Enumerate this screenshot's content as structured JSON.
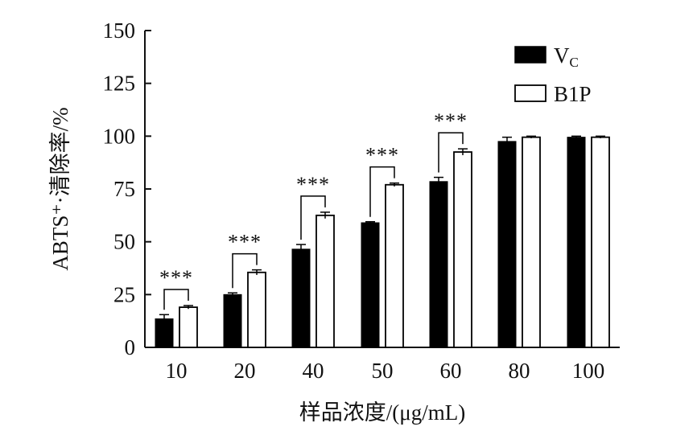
{
  "chart_data": {
    "type": "bar",
    "title": "",
    "xlabel": "样品浓度/(μg/mL)",
    "ylabel": "ABTS⁺·清除率/%",
    "ylim": [
      0,
      150
    ],
    "yticks": [
      "0",
      "25",
      "50",
      "75",
      "100",
      "125",
      "150"
    ],
    "categories": [
      "10",
      "20",
      "40",
      "50",
      "60",
      "80",
      "100"
    ],
    "series": [
      {
        "name": "Vc",
        "name_main": "V",
        "name_sub": "C",
        "fill": "#000000",
        "values": [
          13.5,
          25.0,
          46.5,
          59.0,
          78.5,
          97.5,
          99.5
        ],
        "errors": [
          2.0,
          0.8,
          2.2,
          0.5,
          2.0,
          2.0,
          0.5
        ]
      },
      {
        "name": "B1P",
        "fill": "#ffffff",
        "values": [
          19.0,
          35.5,
          62.5,
          77.0,
          92.5,
          99.5,
          99.5
        ],
        "errors": [
          0.8,
          1.2,
          1.5,
          0.8,
          1.5,
          0.5,
          0.5
        ]
      }
    ],
    "significance": [
      {
        "category": "10",
        "label": "***"
      },
      {
        "category": "20",
        "label": "***"
      },
      {
        "category": "40",
        "label": "***"
      },
      {
        "category": "50",
        "label": "***"
      },
      {
        "category": "60",
        "label": "***"
      }
    ],
    "legend_position": "top-right",
    "grid": false
  }
}
